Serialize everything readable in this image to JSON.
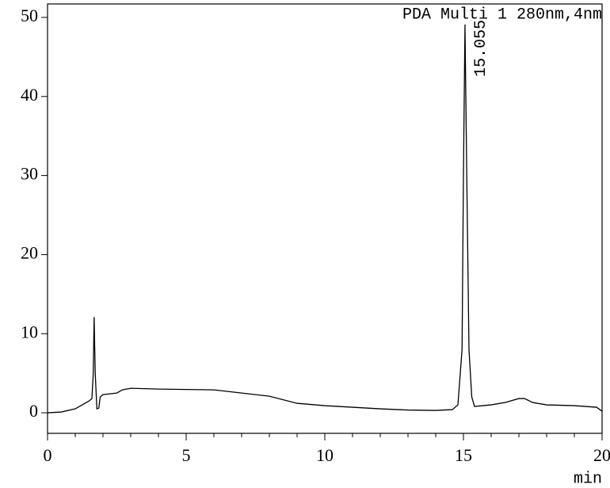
{
  "chart_data": {
    "type": "line",
    "title": "PDA Multi 1 280nm,4nm",
    "xlabel": "min",
    "color": "#000000",
    "xlim": [
      0,
      20
    ],
    "ylim": [
      -2.6,
      51.7
    ],
    "xticks": [
      0,
      5,
      10,
      15,
      20
    ],
    "xminor_ticks": [
      1,
      2,
      3,
      4,
      6,
      7,
      8,
      9,
      11,
      12,
      13,
      14,
      16,
      17,
      18,
      19
    ],
    "yticks": [
      0,
      10,
      20,
      30,
      40,
      50
    ],
    "peak_labels": [
      15.055
    ],
    "x": [
      0,
      0.5,
      1.0,
      1.5,
      1.6,
      1.65,
      1.68,
      1.72,
      1.78,
      1.85,
      1.9,
      2.0,
      2.5,
      2.7,
      3.0,
      4.0,
      5.0,
      6.0,
      7.0,
      8.0,
      9.0,
      10.0,
      11.0,
      12.0,
      13.0,
      14.0,
      14.6,
      14.8,
      14.95,
      15.0,
      15.055,
      15.12,
      15.2,
      15.3,
      15.4,
      16.0,
      16.5,
      17.0,
      17.2,
      17.5,
      18.0,
      19.0,
      19.8,
      20.0
    ],
    "values": [
      0,
      0.1,
      0.5,
      1.5,
      1.8,
      5,
      12.1,
      5,
      0.5,
      0.6,
      2.0,
      2.3,
      2.5,
      2.9,
      3.1,
      3.0,
      2.95,
      2.9,
      2.5,
      2.1,
      1.2,
      0.9,
      0.7,
      0.5,
      0.35,
      0.3,
      0.4,
      1.0,
      8,
      30,
      49.1,
      30,
      8,
      2,
      0.8,
      1.0,
      1.3,
      1.8,
      1.8,
      1.3,
      1.0,
      0.9,
      0.7,
      0.2
    ]
  }
}
